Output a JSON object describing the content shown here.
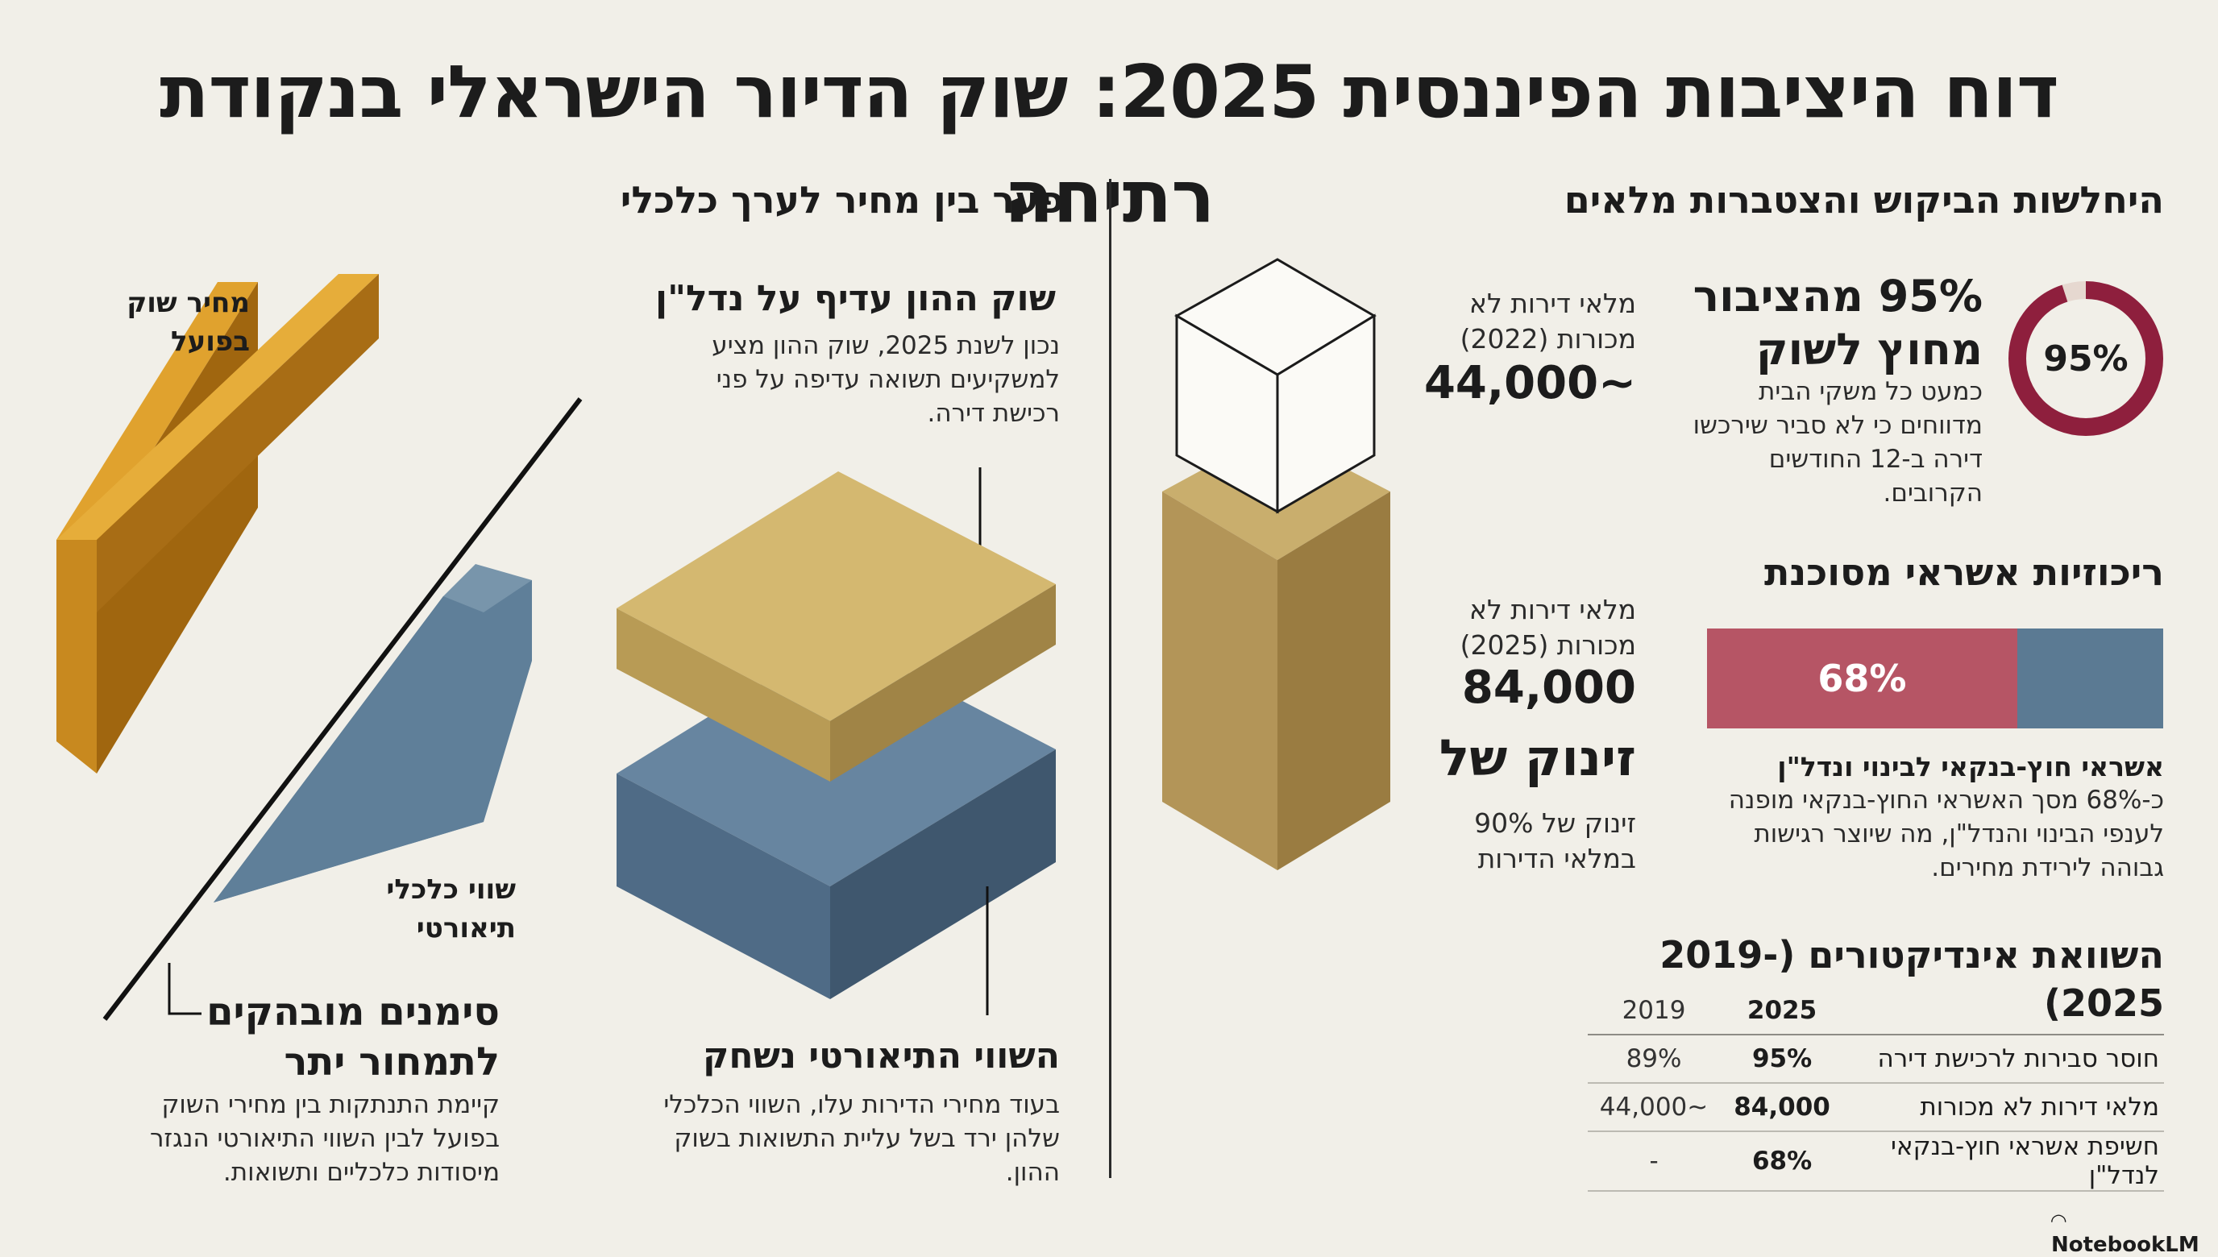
{
  "title": "דוח היציבות הפיננסית 2025: שוק הדיור הישראלי בנקודת רתיחה",
  "left": {
    "heading": "פער בין מחיר לערך כלכלי",
    "market_price_label": "מחיר שוק בפועל",
    "economic_value_label": "שווי כלכלי תיאורטי",
    "signs_heading": "סימנים מובהקים לתמחור יתר",
    "signs_text": "קיימת התנתקות בין מחירי השוק בפועל לבין השווי התיאורטי הנגזר מיסודות כלכליים ותשואות.",
    "capital_heading": "שוק ההון עדיף על נדל\"ן",
    "capital_text": "נכון לשנת 2025, שוק ההון מציע למשקיעים תשואה עדיפה על פני רכישת דירה.",
    "eroded_heading": "השווי התיאורטי נשחק",
    "eroded_text": "בעוד מחירי הדירות עלו, השווי הכלכלי שלהן ירד בשל עליית התשואות בשוק ההון."
  },
  "right": {
    "heading": "היחלשות הביקוש והצטברות מלאים",
    "inventory_2022_label": "מלאי דירות לא מכורות (2022)",
    "inventory_2022_value": "~44,000",
    "inventory_2025_label": "מלאי דירות לא מכורות (2025)",
    "inventory_2025_value": "84,000",
    "jump_heading": "זינוק של",
    "jump_text": "זינוק של 90% במלאי הדירות",
    "public_heading": "95% מהציבור מחוץ לשוק",
    "public_donut": "95%",
    "public_value": 0.95,
    "public_text": "כמעט כל משקי הבית מדווחים כי לא סביר שירכשו דירה ב-12 החודשים הקרובים.",
    "credit_heading": "ריכוזיות אשראי מסוכנת",
    "credit_bar_label": "68%",
    "credit_value": 0.68,
    "credit_subheading": "אשראי חוץ-בנקאי לבינוי ונדל\"ן",
    "credit_text": "כ-68% מסך האשראי החוץ-בנקאי מופנה לענפי הבינוי והנדל\"ן, מה שיוצר רגישות גבוהה לירידת מחירים.",
    "table_heading": "השוואת אינדיקטורים (2019-2025)",
    "table": {
      "col_2025": "2025",
      "col_2019": "2019",
      "rows": [
        {
          "label": "חוסר סבירות לרכישת דירה",
          "v2025": "95%",
          "v2019": "89%"
        },
        {
          "label": "מלאי דירות לא מכורות",
          "v2025": "84,000",
          "v2019": "~44,000"
        },
        {
          "label": "חשיפת אשראי חוץ-בנקאי לנדל\"ן",
          "v2025": "68%",
          "v2019": "-"
        }
      ]
    }
  },
  "logo": "NotebookLM",
  "colors": {
    "background": "#f1efe8",
    "ochre": "#c8891f",
    "sand": "#c9ac62",
    "steel_blue": "#5b7a93",
    "crimson": "#8e1f3d",
    "rose": "#b65565",
    "box_gold": "#b99d60"
  }
}
